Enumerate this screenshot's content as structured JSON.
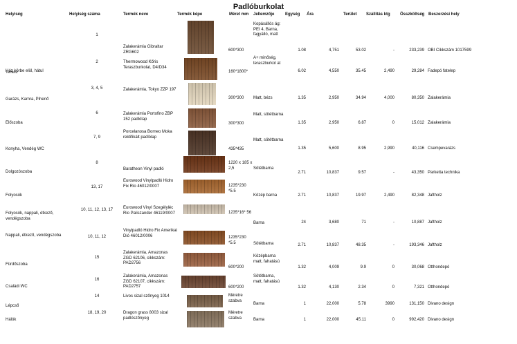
{
  "title": "Padlóburkolat",
  "headers": {
    "location": "Helyiség",
    "room_no": "Helyiség száma",
    "product": "Termék neve",
    "image": "Termék képe",
    "size": "Méret mm",
    "desc": "Jellemzője",
    "unit": "Egység",
    "price": "Ára",
    "area": "Terület",
    "shipping": "Szállítás ktg",
    "total": "Összköltség",
    "source": "Beszerzési hely"
  },
  "rows": [
    {
      "location": "Ház körbe elöl, hátul",
      "room_no": "1",
      "product": "Zalakerámia Gibraltar ZRG602",
      "size": "600*300",
      "desc": "Kopásállós ág: PEI 4, Barna, fagyálló, matt",
      "unit": "1.08",
      "price": "4,751",
      "area": "53.02",
      "shipping": "-",
      "total": "233,239",
      "source": "OBI Cikkszám 1017599",
      "color": "#6b4a30"
    },
    {
      "location": "Terasz",
      "room_no": "2",
      "product": "Thermowood Kőris Teraszburkolat, D4/D34",
      "size": "160*1800*",
      "desc": "A+ minőség, teraszburkol at",
      "unit": "6.02",
      "price": "4,550",
      "area": "35.45",
      "shipping": "2,490",
      "total": "29,284",
      "source": "Fadepó fatelep",
      "color": "#7a4a26"
    },
    {
      "location": "Garázs, Kamra, Pihenő",
      "room_no": "3, 4, 5",
      "product": "Zalakerámia, Tokyo ZZP 197",
      "size": "300*300",
      "desc": "Matt, bézs",
      "unit": "1.35",
      "price": "2,950",
      "area": "34.94",
      "shipping": "4,000",
      "total": "80,350",
      "source": "Zalakerámia",
      "color": "#e3d6bd"
    },
    {
      "location": "Előszoba",
      "room_no": "6",
      "product": "Zalakerámia Portofino ZBP 152 padlólap",
      "size": "300*300",
      "desc": "Matt, sötétbarna",
      "unit": "1.35",
      "price": "2,950",
      "area": "6.87",
      "shipping": "0",
      "total": "15,012",
      "source": "Zalakerámia",
      "color": "#8a5a3c"
    },
    {
      "location": "Konyha, Vendég WC",
      "room_no": "7, 9",
      "product": "Porcelanosa Borneo Moka rektifikált padlólap",
      "size": "435*435",
      "desc": "Matt, sötétbarna",
      "unit": "1.35",
      "price": "5,600",
      "area": "8.95",
      "shipping": "2,990",
      "total": "40,116",
      "source": "Csempevarázs",
      "color": "#4e3526"
    },
    {
      "location": "Dolgozószoba",
      "room_no": "8",
      "product": "Baratheon Vinyl padló",
      "size": "1220 x 185 x 2,5",
      "desc": "Sötétbarna",
      "unit": "2.71",
      "price": "10,837",
      "area": "9.57",
      "shipping": "-",
      "total": "43,350",
      "source": "Parketta technika",
      "color": "#6e3516"
    },
    {
      "location": "Folyosók",
      "room_no": "13, 17",
      "product": "Eurowood Vinylpadló Hidro Fix Rio 46012/0007",
      "size": "1235*230 *5.5",
      "desc": "Közép barna",
      "unit": "2.71",
      "price": "10,837",
      "area": "19.97",
      "shipping": "2,490",
      "total": "82,348",
      "source": "Jaftholz",
      "color": "#a8672f"
    },
    {
      "location": "Folyosók, nappali, étkező, vendégszoba",
      "room_no": "10, 11, 12, 13, 17",
      "product": "Eurowood Vinyl Szegélyléc Rio Paliszander 46119/0007",
      "size": "1235*16* 56",
      "desc": "Barna",
      "unit": "24",
      "price": "3,680",
      "area": "71",
      "shipping": "-",
      "total": "10,887",
      "source": "Jaftholz",
      "color": "#cfc2b0"
    },
    {
      "location": "Nappali, étkező, vendégszoba",
      "room_no": "10, 11, 12",
      "product": "Vinylpadló Hidro Fix Amerikai Dió 46012/0006",
      "size": "1235*230 *5.5",
      "desc": "Sötétbarna",
      "unit": "2.71",
      "price": "10,837",
      "area": "48.35",
      "shipping": "-",
      "total": "193,346",
      "source": "Jaftholz",
      "color": "#8a4f24"
    },
    {
      "location": "Fürdőszoba",
      "room_no": "15",
      "product": "Zalakerámia, Amazonas ZGD 62106, cikkszám: PAD2756",
      "size": "600*200",
      "desc": "Középbarna matt, fahatású",
      "unit": "1.32",
      "price": "4,009",
      "area": "9.9",
      "shipping": "0",
      "total": "30,068",
      "source": "Otthondepó",
      "color": "#9a6040"
    },
    {
      "location": "Családi WC",
      "room_no": "16",
      "product": "Zalakerámia, Amazonas ZGD 62107, cikkszám: PAD2757",
      "size": "600*200",
      "desc": "Sötétbarna, matt, fahatású",
      "unit": "1.32",
      "price": "4,130",
      "area": "2.34",
      "shipping": "0",
      "total": "7,321",
      "source": "Otthondepó",
      "color": "#6b4430"
    },
    {
      "location": "Lépcső",
      "room_no": "14",
      "product": "Livos sizal szőnyeg 1014",
      "size": "Méretre szabva",
      "desc": "Barna",
      "unit": "1",
      "price": "22,000",
      "area": "5.78",
      "shipping": "3990",
      "total": "131,150",
      "source": "Divano design",
      "color": "#7a6048"
    },
    {
      "location": "Hálók",
      "room_no": "18, 19, 20",
      "product": "Dragon grass 8003 sizal padlószőnyeg",
      "size": "Méretre szabva",
      "desc": "Barna",
      "unit": "1",
      "price": "22,000",
      "area": "45.11",
      "shipping": "0",
      "total": "992,420",
      "source": "Divano design",
      "color": "#8a7660"
    }
  ]
}
